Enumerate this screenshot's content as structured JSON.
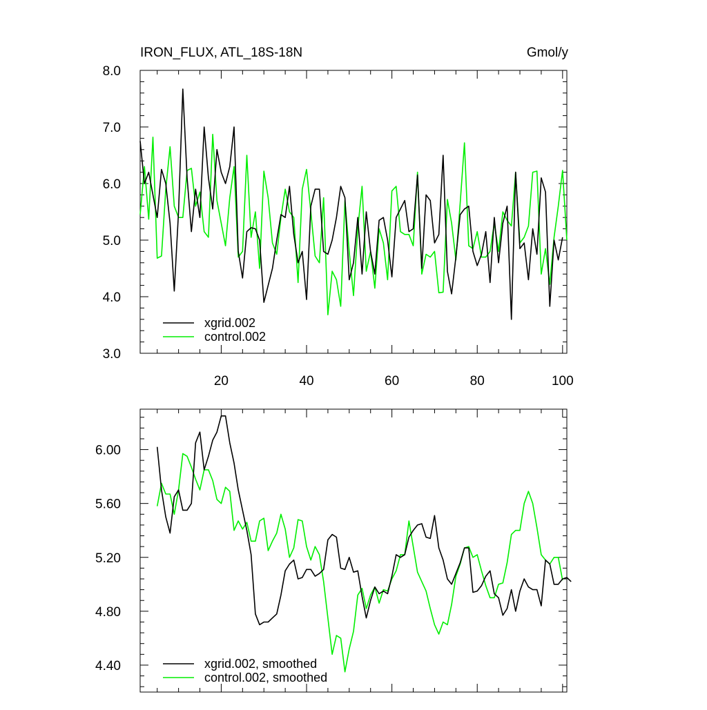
{
  "figure": {
    "background": "#ffffff",
    "colors": {
      "xgrid": "#000000",
      "control": "#00ee00"
    }
  },
  "chart_data": [
    {
      "type": "line",
      "title": "IRON_FLUX, ATL_18S-18N",
      "units": "Gmol/y",
      "xlim": [
        1,
        101
      ],
      "ylim": [
        3.0,
        8.0
      ],
      "x_ticks": [
        20,
        40,
        60,
        80,
        100
      ],
      "x_tick_labels": [
        "20",
        "40",
        "60",
        "80",
        "100"
      ],
      "y_ticks": [
        3.0,
        4.0,
        5.0,
        6.0,
        7.0,
        8.0
      ],
      "y_tick_labels": [
        "3.0",
        "4.0",
        "5.0",
        "6.0",
        "7.0",
        "8.0"
      ],
      "legend_position": "bottom-left",
      "x_start": 1,
      "series": [
        {
          "name": "xgrid.002",
          "color": "#000000",
          "values": [
            6.75,
            6.0,
            6.2,
            5.8,
            5.4,
            6.25,
            6.0,
            5.3,
            4.1,
            5.5,
            7.67,
            6.1,
            5.15,
            5.9,
            5.4,
            7.0,
            6.1,
            5.55,
            6.6,
            6.2,
            6.0,
            6.3,
            7.0,
            4.8,
            4.33,
            5.15,
            5.22,
            5.2,
            5.0,
            3.9,
            4.2,
            4.5,
            5.0,
            5.45,
            5.4,
            5.95,
            5.1,
            4.6,
            4.8,
            3.95,
            5.6,
            5.9,
            5.9,
            4.8,
            4.75,
            5.0,
            5.4,
            5.95,
            5.75,
            4.3,
            4.6,
            5.4,
            4.4,
            5.5,
            4.8,
            4.4,
            5.35,
            5.4,
            5.0,
            4.35,
            5.4,
            5.55,
            5.7,
            5.15,
            5.2,
            6.15,
            4.5,
            5.8,
            5.7,
            4.95,
            5.1,
            6.5,
            4.45,
            4.05,
            4.7,
            5.45,
            5.55,
            5.6,
            4.8,
            4.55,
            4.75,
            5.15,
            4.25,
            5.4,
            4.6,
            5.3,
            5.6,
            3.6,
            6.2,
            4.85,
            4.95,
            4.3,
            5.2,
            4.75,
            6.1,
            5.85,
            3.83,
            5.0,
            4.65,
            5.05
          ]
        },
        {
          "name": "control.002",
          "color": "#00ee00",
          "values": [
            5.45,
            6.3,
            5.37,
            6.82,
            4.68,
            4.72,
            5.9,
            6.65,
            5.6,
            5.4,
            5.4,
            6.23,
            6.27,
            5.6,
            5.85,
            5.15,
            5.05,
            6.87,
            5.7,
            5.3,
            4.9,
            5.75,
            6.3,
            4.7,
            4.8,
            6.5,
            5.05,
            5.5,
            4.5,
            6.22,
            5.75,
            4.95,
            4.75,
            5.4,
            5.9,
            5.5,
            5.4,
            4.25,
            5.9,
            6.25,
            5.5,
            4.72,
            4.6,
            5.75,
            3.68,
            4.45,
            4.3,
            3.83,
            5.7,
            4.8,
            4.02,
            5.2,
            5.95,
            4.45,
            4.8,
            4.15,
            5.2,
            4.95,
            4.3,
            5.87,
            5.95,
            5.15,
            5.1,
            5.1,
            4.9,
            6.2,
            4.4,
            4.75,
            4.7,
            4.8,
            4.07,
            4.08,
            5.72,
            5.3,
            4.65,
            5.65,
            6.72,
            4.9,
            4.85,
            5.15,
            4.7,
            4.7,
            4.8,
            5.3,
            4.8,
            5.5,
            5.35,
            5.25,
            6.2,
            4.95,
            5.05,
            5.25,
            6.2,
            6.22,
            4.4,
            4.85,
            4.22,
            5.05,
            5.6,
            6.23,
            5.0
          ]
        }
      ]
    },
    {
      "type": "line",
      "title": "",
      "xlim": [
        1,
        101
      ],
      "ylim": [
        4.2,
        6.3
      ],
      "x_ticks": [
        20,
        40,
        60,
        80,
        100
      ],
      "y_ticks": [
        4.4,
        4.8,
        5.2,
        5.6,
        6.0
      ],
      "y_tick_labels": [
        "4.40",
        "4.80",
        "5.20",
        "5.60",
        "6.00"
      ],
      "legend_position": "bottom-left",
      "x_start": 5,
      "series": [
        {
          "name": "xgrid.002, smoothed",
          "color": "#000000",
          "values": [
            6.02,
            5.7,
            5.5,
            5.38,
            5.65,
            5.7,
            5.55,
            5.55,
            5.6,
            6.05,
            6.13,
            5.85,
            5.95,
            6.07,
            6.13,
            6.25,
            6.25,
            6.05,
            5.9,
            5.7,
            5.55,
            5.4,
            5.22,
            4.78,
            4.7,
            4.72,
            4.72,
            4.75,
            4.78,
            4.92,
            5.1,
            5.15,
            5.18,
            5.04,
            5.05,
            5.11,
            5.11,
            5.06,
            5.08,
            5.11,
            5.33,
            5.37,
            5.35,
            5.12,
            5.11,
            5.2,
            5.09,
            5.1,
            4.91,
            4.75,
            4.88,
            4.98,
            4.93,
            4.95,
            4.93,
            5.06,
            5.22,
            5.2,
            5.22,
            5.35,
            5.4,
            5.44,
            5.45,
            5.35,
            5.34,
            5.51,
            5.27,
            5.18,
            5.04,
            5.0,
            5.08,
            5.16,
            5.27,
            5.27,
            4.94,
            4.95,
            4.99,
            5.06,
            5.1,
            4.93,
            4.9,
            4.77,
            4.82,
            4.96,
            4.8,
            4.95,
            5.04,
            4.98,
            4.96,
            4.96,
            4.84,
            5.18,
            5.15,
            5.0,
            5.0,
            5.04,
            5.05,
            5.02
          ]
        },
        {
          "name": "control.002, smoothed",
          "color": "#00ee00",
          "values": [
            5.58,
            5.75,
            5.67,
            5.67,
            5.52,
            5.7,
            5.97,
            5.95,
            5.87,
            5.78,
            5.7,
            5.85,
            5.85,
            5.77,
            5.63,
            5.6,
            5.72,
            5.69,
            5.4,
            5.47,
            5.41,
            5.46,
            5.32,
            5.32,
            5.47,
            5.49,
            5.25,
            5.32,
            5.38,
            5.52,
            5.41,
            5.2,
            5.27,
            5.48,
            5.47,
            5.28,
            5.18,
            5.28,
            5.22,
            5.02,
            4.75,
            4.48,
            4.62,
            4.6,
            4.35,
            4.52,
            4.65,
            4.92,
            4.97,
            4.82,
            4.92,
            4.98,
            4.86,
            4.96,
            4.95,
            5.04,
            5.1,
            5.22,
            5.22,
            5.47,
            5.28,
            5.09,
            5.02,
            4.95,
            4.82,
            4.7,
            4.63,
            4.72,
            4.7,
            4.85,
            5.06,
            5.15,
            5.27,
            5.28,
            5.2,
            5.22,
            5.1,
            4.99,
            4.9,
            4.9,
            5.0,
            5.01,
            5.16,
            5.37,
            5.4,
            5.4,
            5.6,
            5.69,
            5.6,
            5.42,
            5.22,
            5.18,
            5.15,
            5.2,
            5.2,
            5.03
          ]
        }
      ]
    }
  ]
}
